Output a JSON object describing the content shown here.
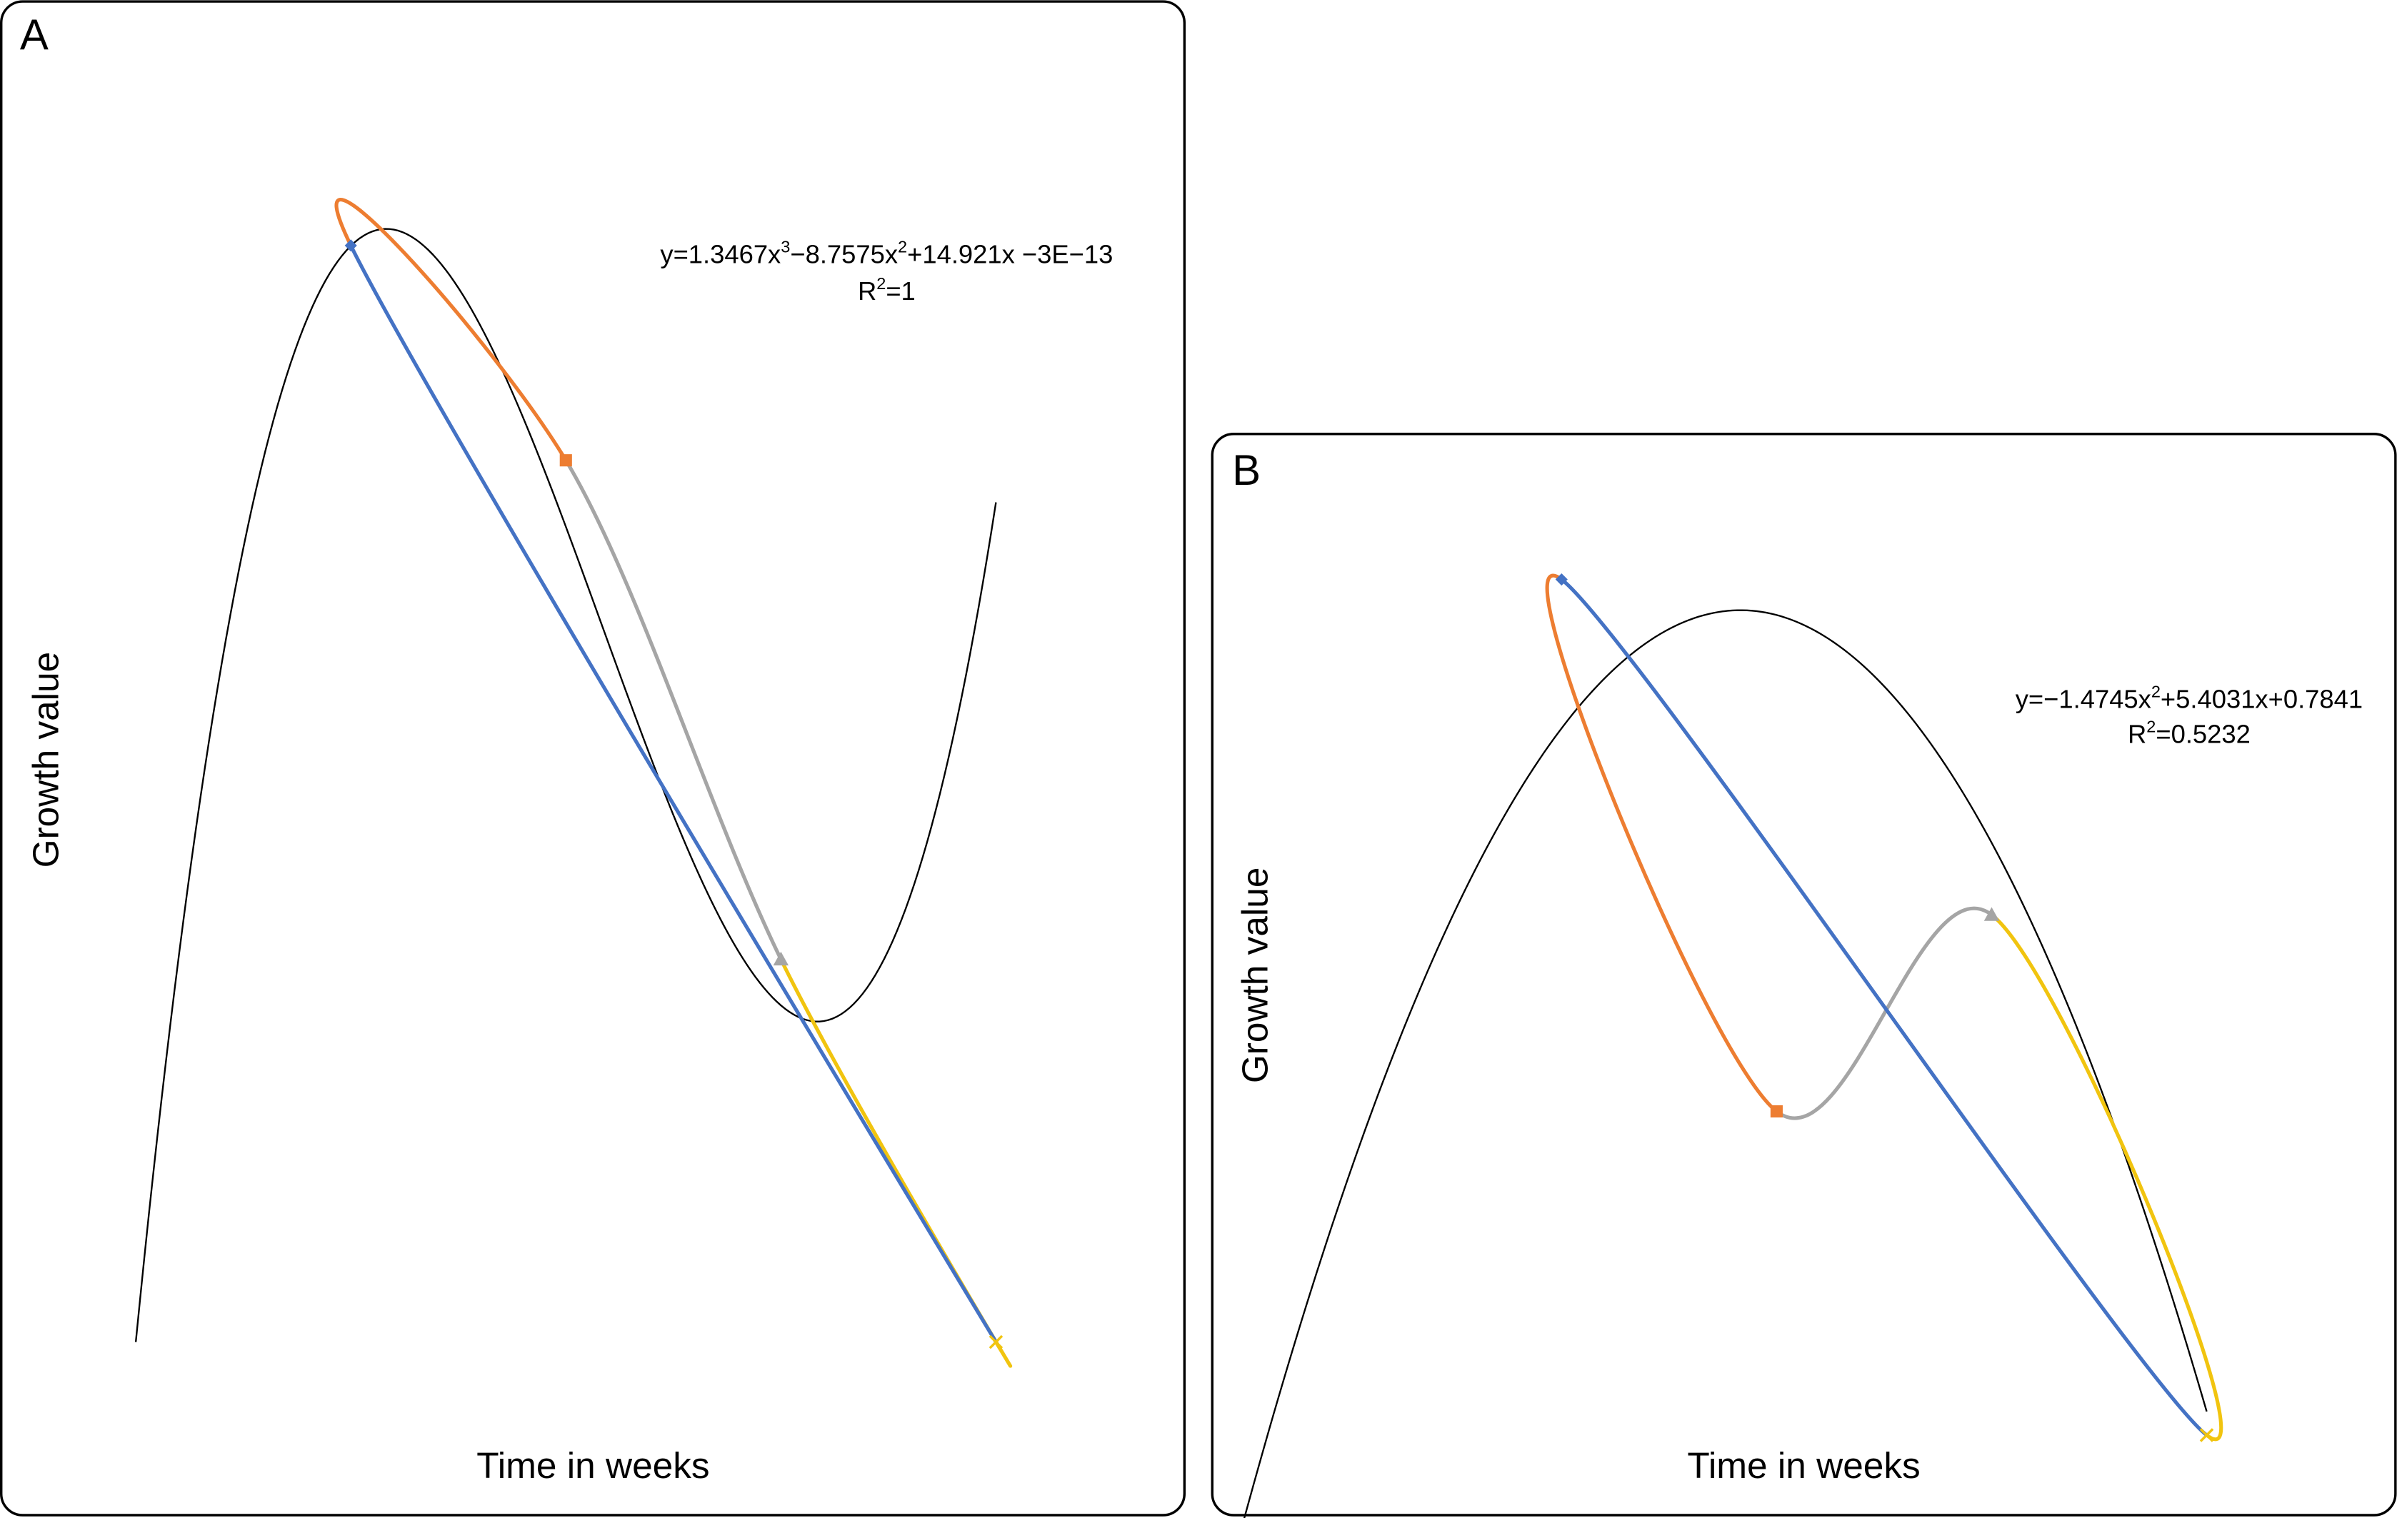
{
  "panels": [
    {
      "label": "A",
      "xlabel": "Time in weeks",
      "ylabel": "Growth value",
      "equation": [
        "y=1.3467x",
        "3",
        "−8.7575x",
        "2",
        "+14.921x −3E−13"
      ],
      "r2_text": [
        "R",
        "2",
        "=1"
      ]
    },
    {
      "label": "B",
      "xlabel": "Time in weeks",
      "ylabel": "Growth value",
      "equation": [
        "y=−1.4745x",
        "2",
        "+5.4031x+0.7841"
      ],
      "r2_text": [
        "R",
        "2",
        "=0.5232"
      ]
    }
  ],
  "chart_data": [
    {
      "type": "scatter",
      "title": "",
      "xlabel": "Time in weeks",
      "ylabel": "Growth value",
      "axes_visible": false,
      "grid": false,
      "legend": "none",
      "colors": {
        "point1": "#4472c4",
        "point2": "#ed7d31",
        "point3": "#a5a5a5",
        "point4": "#f1c40f",
        "trendline": "#000000"
      },
      "x": [
        1,
        2,
        3,
        4
      ],
      "y": [
        7.5124,
        6.0408,
        2.6222,
        0.0
      ],
      "series": [
        {
          "values": [
            7.5124,
            6.0408
          ]
        },
        {
          "values": [
            6.0408,
            2.6222
          ]
        },
        {
          "values": [
            2.6222,
            0.0
          ]
        },
        {
          "values": [
            0.0,
            7.5124
          ]
        }
      ],
      "trendline": {
        "type": "polynomial",
        "degree": 3,
        "coefficients": [
          1.3467,
          -8.7575,
          14.921,
          -3e-13
        ],
        "r2": 1
      }
    },
    {
      "type": "scatter",
      "title": "",
      "xlabel": "Time in weeks",
      "ylabel": "Growth value",
      "axes_visible": false,
      "grid": false,
      "legend": "none",
      "colors": {
        "point1": "#4472c4",
        "point2": "#ed7d31",
        "point3": "#a5a5a5",
        "point4": "#f1c40f",
        "trendline": "#000000"
      },
      "x": [
        1,
        2,
        3,
        4
      ],
      "y": [
        6.0,
        1.4,
        3.1,
        -1.4
      ],
      "series": [
        {
          "values": [
            6.0,
            1.4
          ]
        },
        {
          "values": [
            1.4,
            3.1
          ]
        },
        {
          "values": [
            3.1,
            -1.4
          ]
        },
        {
          "values": [
            -1.4,
            3.1
          ]
        }
      ],
      "trendline": {
        "type": "polynomial",
        "degree": 2,
        "coefficients": [
          -1.4745,
          5.4031,
          0.7841
        ],
        "r2": 0.5232
      }
    }
  ]
}
